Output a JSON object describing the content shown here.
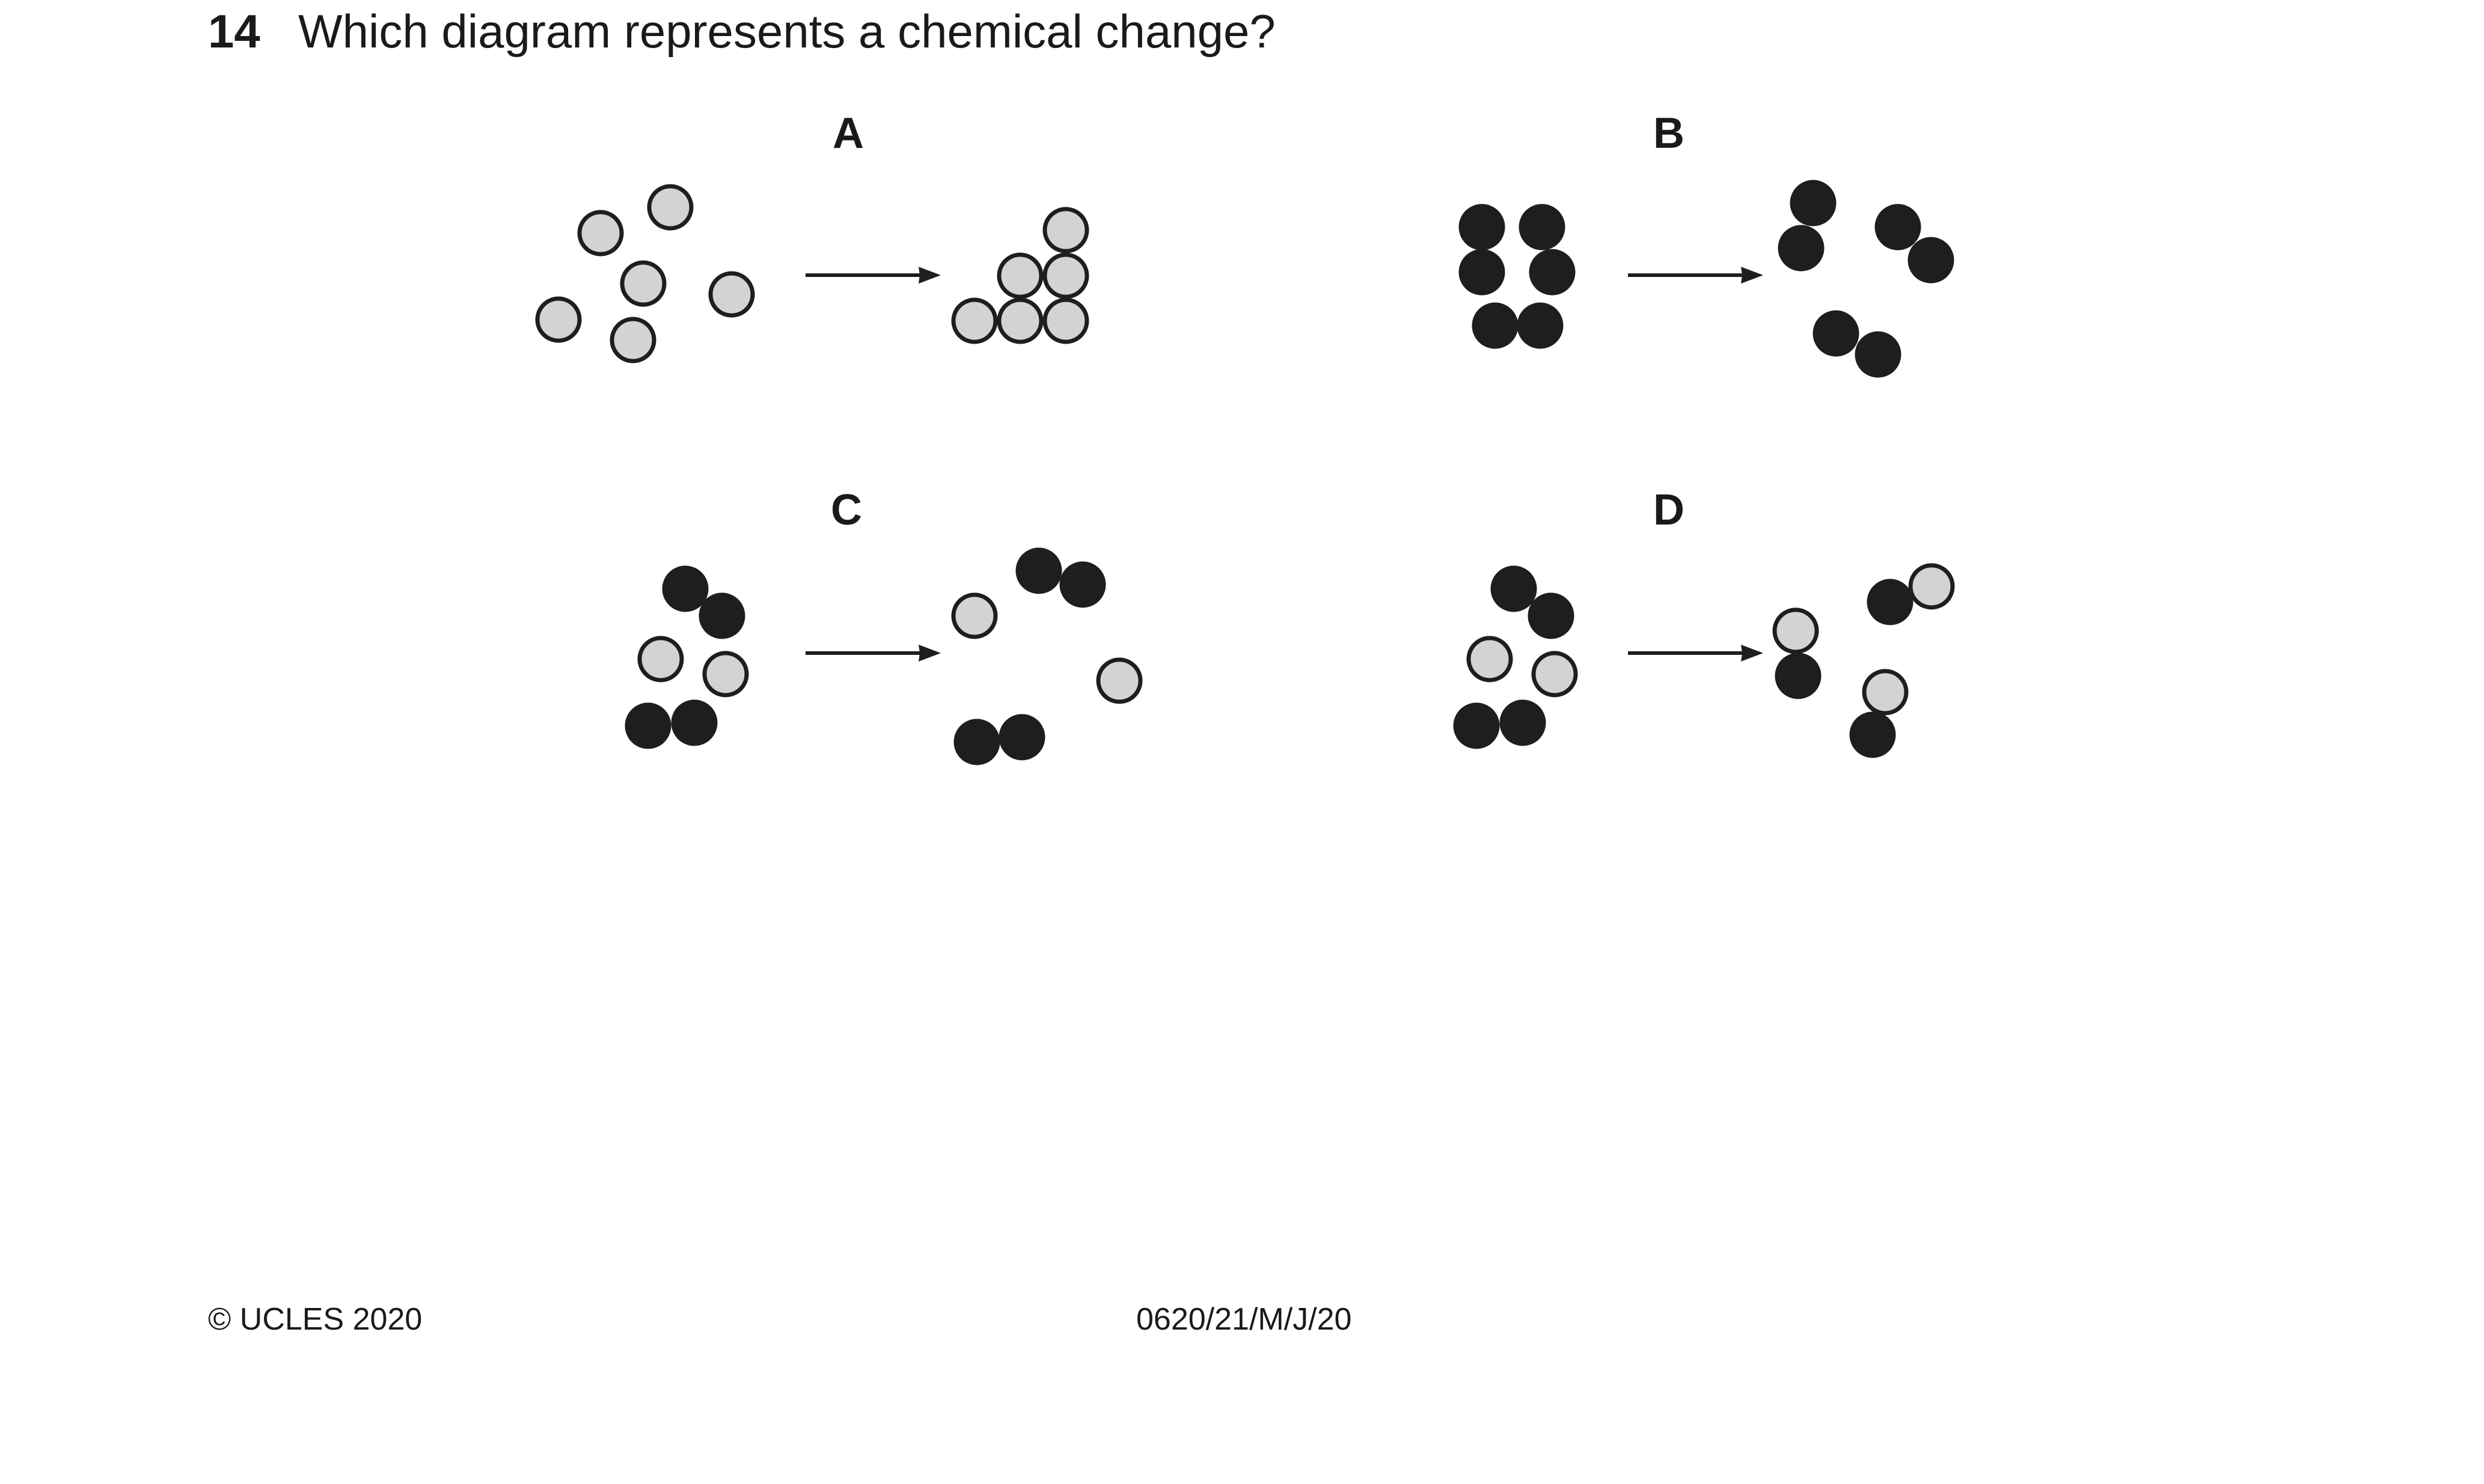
{
  "question": {
    "number": "14",
    "text": "Which diagram represents a chemical change?"
  },
  "options": [
    {
      "label": "A"
    },
    {
      "label": "B"
    },
    {
      "label": "C"
    },
    {
      "label": "D"
    }
  ],
  "colors": {
    "light_particle": "#d3d3d3",
    "dark_particle": "#1e1e1e",
    "outline": "#1e1e1e"
  },
  "footer": {
    "copyright": "© UCLES 2020",
    "paper_code": "0620/21/M/J/20"
  }
}
